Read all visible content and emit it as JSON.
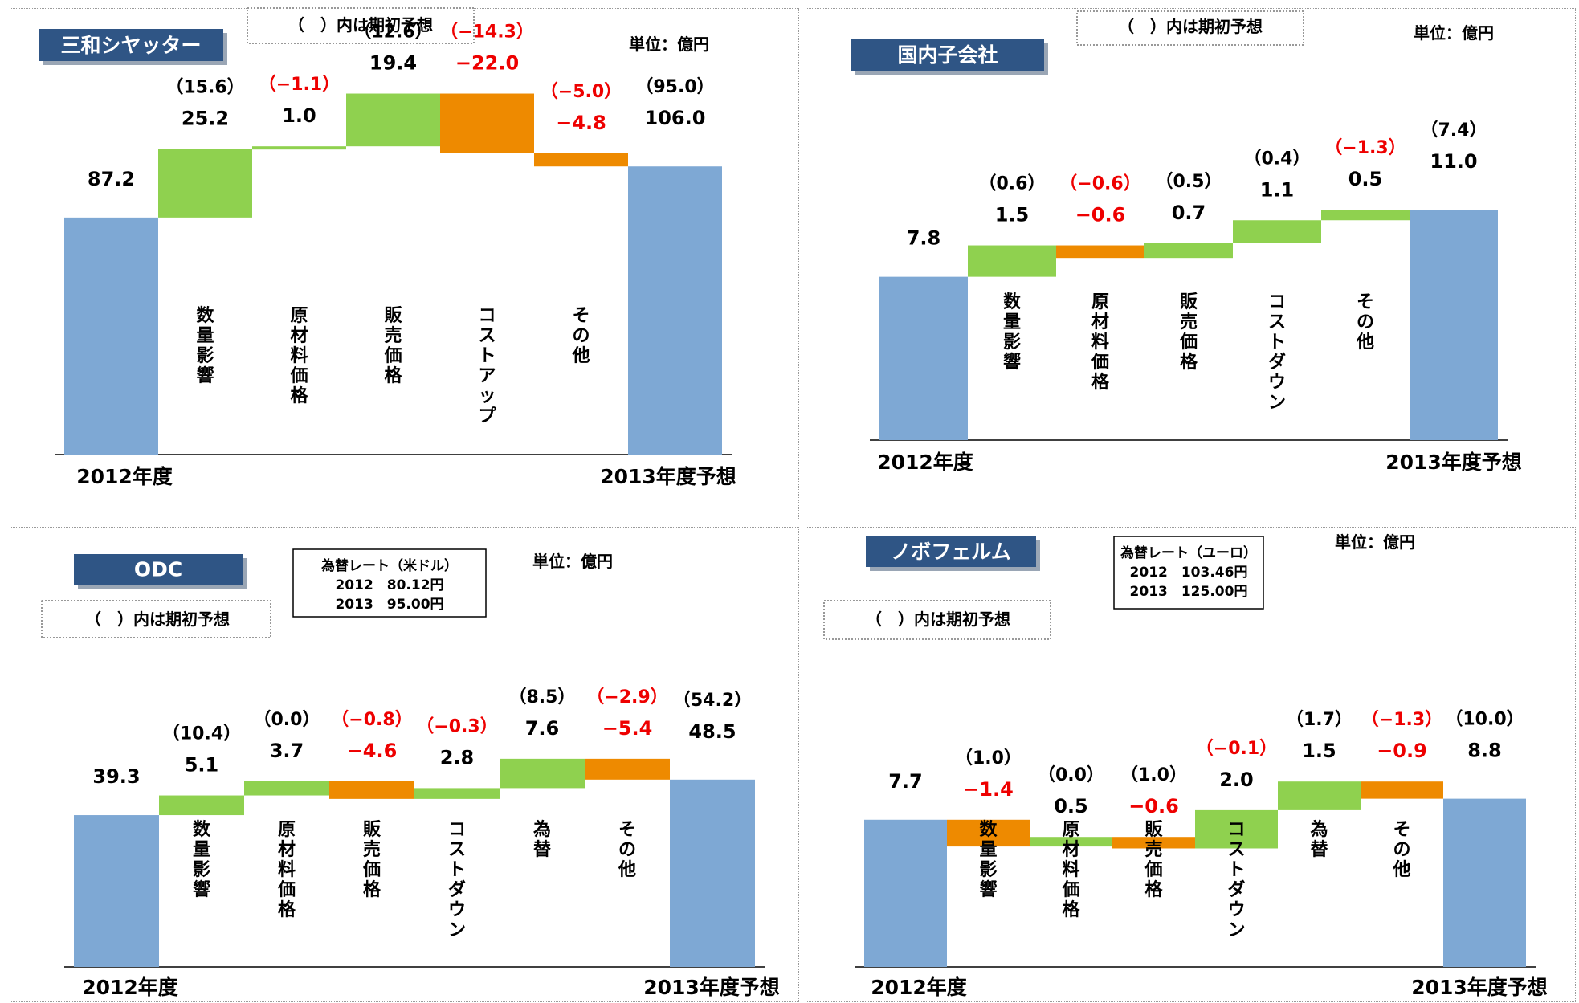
{
  "colors": {
    "base": "#7ea8d4",
    "increase": "#8fd14f",
    "decrease": "#ee8a00",
    "negative_text": "#ee0000",
    "text": "#000000",
    "title_bg": "#2f5585"
  },
  "chart_data": [
    {
      "type": "waterfall",
      "title": "三和シヤッター",
      "note": "（　）内は期初予想",
      "unit": "単位：億円",
      "start_label": "2012年度",
      "end_label": "2013年度予想",
      "categories": [
        "数量影響",
        "原材料価格",
        "販売価格",
        "コストアップ",
        "その他"
      ],
      "start": {
        "value": 87.2,
        "value_label": "87.2",
        "plan_label": ""
      },
      "end": {
        "value": 106.0,
        "value_label": "106.0",
        "plan_label": "（95.0）"
      },
      "steps": [
        {
          "value": 25.2,
          "value_label": "25.2",
          "plan_label": "（15.6）"
        },
        {
          "value": 1.0,
          "value_label": "1.0",
          "plan_label": "（−1.1）"
        },
        {
          "value": 19.4,
          "value_label": "19.4",
          "plan_label": "（12.6）"
        },
        {
          "value": -22.0,
          "value_label": "−22.0",
          "plan_label": "（−14.3）"
        },
        {
          "value": -4.8,
          "value_label": "−4.8",
          "plan_label": "（−5.0）"
        }
      ],
      "ylim": [
        0,
        130
      ]
    },
    {
      "type": "waterfall",
      "title": "国内子会社",
      "note": "（　）内は期初予想",
      "unit": "単位：億円",
      "start_label": "2012年度",
      "end_label": "2013年度予想",
      "categories": [
        "数量影響",
        "原材料価格",
        "販売価格",
        "コストダウン",
        "その他"
      ],
      "start": {
        "value": 7.8,
        "value_label": "7.8",
        "plan_label": ""
      },
      "end": {
        "value": 11.0,
        "value_label": "11.0",
        "plan_label": "（7.4）"
      },
      "steps": [
        {
          "value": 1.5,
          "value_label": "1.5",
          "plan_label": "（0.6）"
        },
        {
          "value": -0.6,
          "value_label": "−0.6",
          "plan_label": "（−0.6）"
        },
        {
          "value": 0.7,
          "value_label": "0.7",
          "plan_label": "（0.5）"
        },
        {
          "value": 1.1,
          "value_label": "1.1",
          "plan_label": "（0.4）"
        },
        {
          "value": 0.5,
          "value_label": "0.5",
          "plan_label": "（−1.3）"
        }
      ],
      "ylim": [
        0,
        14
      ]
    },
    {
      "type": "waterfall",
      "title": "ODC",
      "note": "（　）内は期初予想",
      "unit": "単位：億円",
      "rate_box": {
        "title": "為替レート（米ドル）",
        "rows": [
          "2012　80.12円",
          "2013　95.00円"
        ]
      },
      "start_label": "2012年度",
      "end_label": "2013年度予想",
      "categories": [
        "数量影響",
        "原材料価格",
        "販売価格",
        "コストダウン",
        "為替",
        "その他"
      ],
      "start": {
        "value": 39.3,
        "value_label": "39.3",
        "plan_label": ""
      },
      "end": {
        "value": 48.5,
        "value_label": "48.5",
        "plan_label": "（54.2）"
      },
      "steps": [
        {
          "value": 5.1,
          "value_label": "5.1",
          "plan_label": "（10.4）"
        },
        {
          "value": 3.7,
          "value_label": "3.7",
          "plan_label": "（0.0）"
        },
        {
          "value": -4.6,
          "value_label": "−4.6",
          "plan_label": "（−0.8）"
        },
        {
          "value": 2.8,
          "value_label": "2.8",
          "plan_label": "（−0.3）"
        },
        {
          "value": 7.6,
          "value_label": "7.6",
          "plan_label": "（8.5）"
        },
        {
          "value": -5.4,
          "value_label": "−5.4",
          "plan_label": "（−2.9）"
        }
      ],
      "ylim": [
        0,
        78
      ]
    },
    {
      "type": "waterfall",
      "title": "ノボフェルム",
      "note": "（　）内は期初予想",
      "unit": "単位：億円",
      "rate_box": {
        "title": "為替レート（ユーロ）",
        "rows": [
          "2012　103.46円",
          "2013　125.00円"
        ]
      },
      "start_label": "2012年度",
      "end_label": "2013年度予想",
      "categories": [
        "数量影響",
        "原材料価格",
        "販売価格",
        "コストダウン",
        "為替",
        "その他"
      ],
      "start": {
        "value": 7.7,
        "value_label": "7.7",
        "plan_label": ""
      },
      "end": {
        "value": 8.8,
        "value_label": "8.8",
        "plan_label": "（10.0）"
      },
      "steps": [
        {
          "value": -1.4,
          "value_label": "−1.4",
          "plan_label": "（1.0）"
        },
        {
          "value": 0.5,
          "value_label": "0.5",
          "plan_label": "（0.0）"
        },
        {
          "value": -0.6,
          "value_label": "−0.6",
          "plan_label": "（1.0）"
        },
        {
          "value": 2.0,
          "value_label": "2.0",
          "plan_label": "（−0.1）"
        },
        {
          "value": 1.5,
          "value_label": "1.5",
          "plan_label": "（1.7）"
        },
        {
          "value": -0.9,
          "value_label": "−0.9",
          "plan_label": "（−1.3）"
        }
      ],
      "ylim": [
        0,
        14.5
      ]
    }
  ]
}
